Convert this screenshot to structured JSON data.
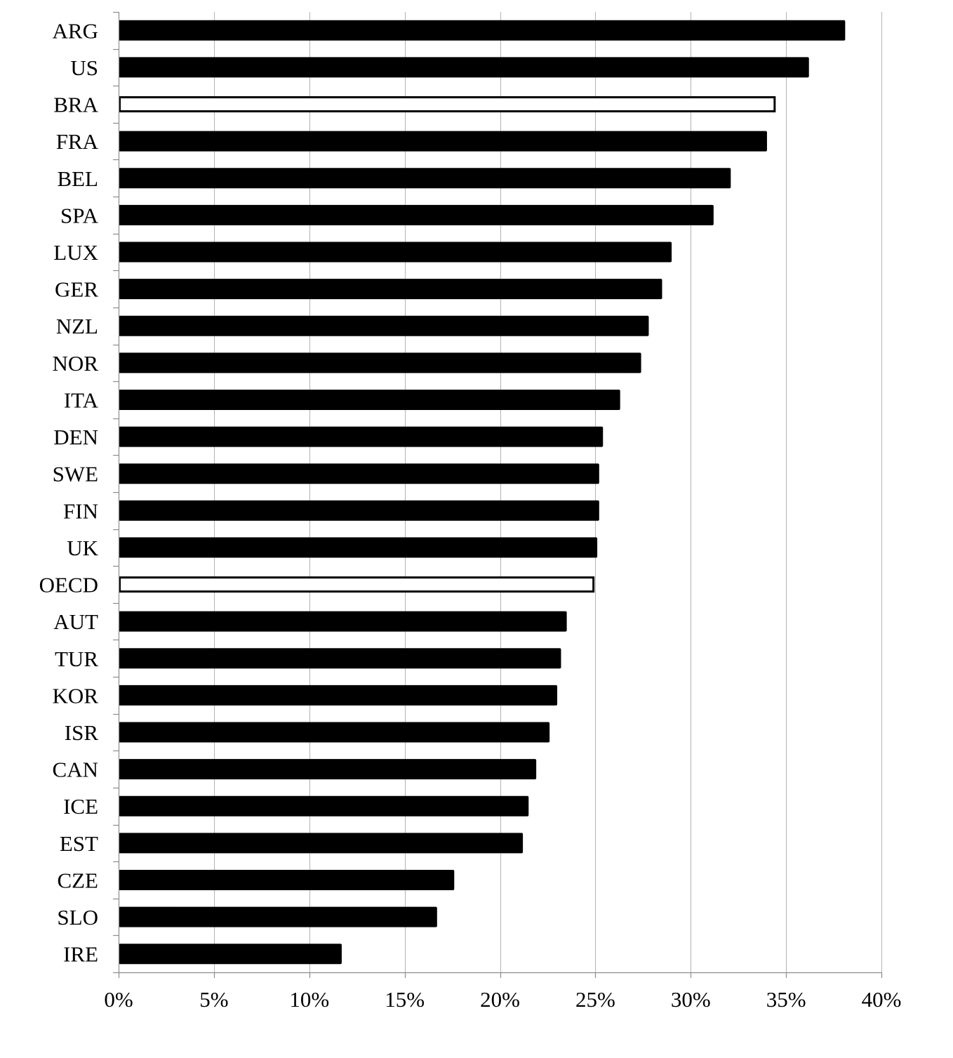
{
  "chart_data": {
    "type": "bar",
    "orientation": "horizontal",
    "categories": [
      "ARG",
      "US",
      "BRA",
      "FRA",
      "BEL",
      "SPA",
      "LUX",
      "GER",
      "NZL",
      "NOR",
      "ITA",
      "DEN",
      "SWE",
      "FIN",
      "UK",
      "OECD",
      "AUT",
      "TUR",
      "KOR",
      "ISR",
      "CAN",
      "ICE",
      "EST",
      "CZE",
      "SLO",
      "IRE"
    ],
    "values": [
      38.1,
      36.2,
      34.4,
      34.0,
      32.1,
      31.2,
      29.0,
      28.5,
      27.8,
      27.4,
      26.3,
      25.4,
      25.2,
      25.2,
      25.1,
      24.9,
      23.5,
      23.2,
      23.0,
      22.6,
      21.9,
      21.5,
      21.2,
      17.6,
      16.7,
      11.7
    ],
    "highlighted": [
      "BRA",
      "OECD"
    ],
    "xlim": [
      0,
      40
    ],
    "xticks": [
      0,
      5,
      10,
      15,
      20,
      25,
      30,
      35,
      40
    ],
    "xtick_labels": [
      "0%",
      "5%",
      "10%",
      "15%",
      "20%",
      "25%",
      "30%",
      "35%",
      "40%"
    ],
    "value_unit": "%",
    "title": "",
    "xlabel": "",
    "ylabel": "",
    "grid": "vertical",
    "legend": "none",
    "colors": {
      "bar": "#000000",
      "highlight_fill": "#ffffff",
      "highlight_stroke": "#000000",
      "grid": "#b3b3b3",
      "axis": "#8c8c8c"
    }
  }
}
